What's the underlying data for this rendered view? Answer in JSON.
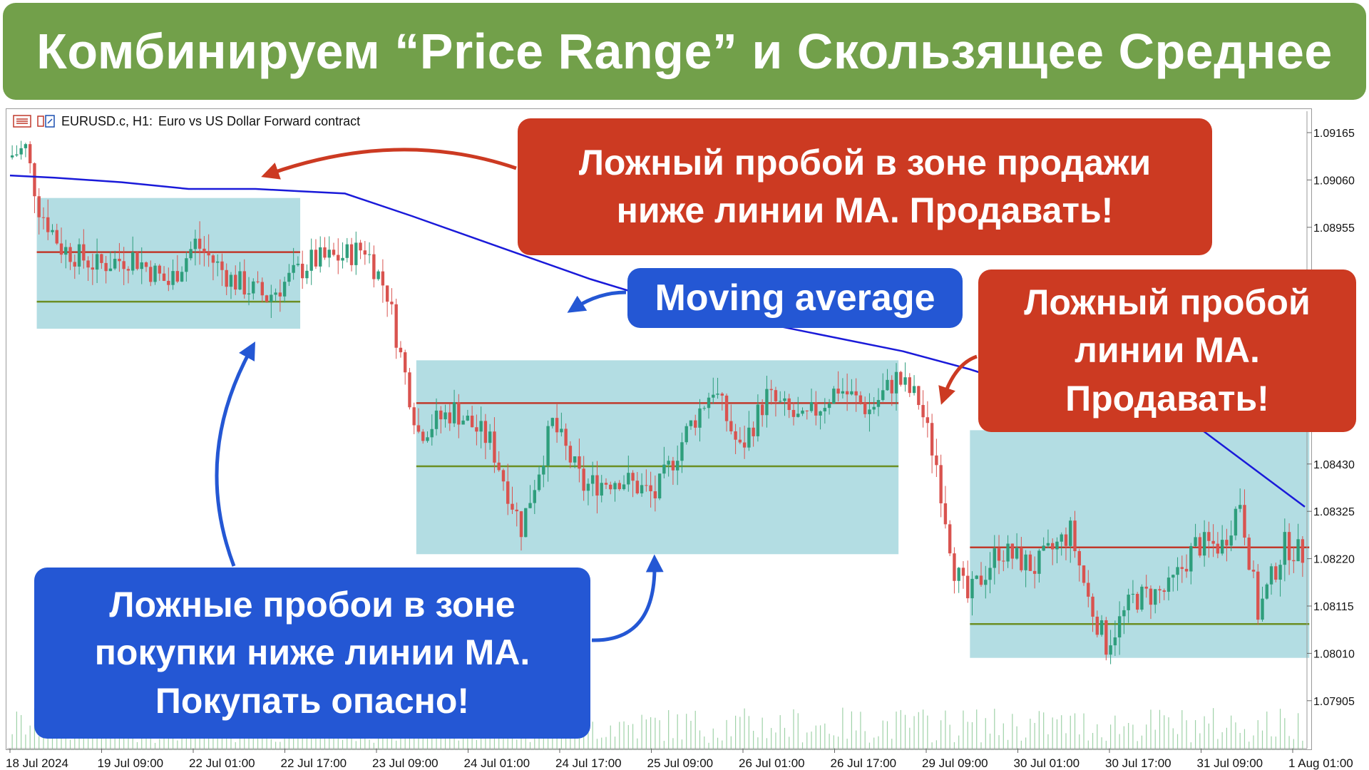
{
  "banner": {
    "title": "Комбинируем “Price Range” и Скользящее Среднее"
  },
  "header": {
    "symbol": "EURUSD.c, H1:",
    "description": "Euro vs US Dollar Forward contract"
  },
  "callouts": {
    "top_right": "Ложный пробой в зоне продажи\nниже линии MA. Продавать!",
    "moving_average": "Moving average",
    "right": "Ложный пробой\nлинии MA.\nПродавать!",
    "bottom_left": "Ложные пробои в зоне\nпокупки ниже линии MA.\nПокупать опасно!"
  },
  "colors": {
    "banner": "#72a04a",
    "bull": "#2e9e7c",
    "bear": "#d9534f",
    "ma": "#1a1ad9",
    "zone": "#b3dde3",
    "resistance": "#c0392b",
    "support": "#6b8e23",
    "callout_red": "#cc3a22",
    "callout_blue": "#2457d4"
  },
  "chart_data": {
    "type": "candlestick",
    "symbol": "EURUSD.c",
    "timeframe": "H1",
    "price_ticks": [
      1.09165,
      1.0906,
      1.08955,
      1.0843,
      1.08325,
      1.0822,
      1.08115,
      1.0801,
      1.07905
    ],
    "time_labels": [
      "18 Jul 2024",
      "19 Jul 09:00",
      "22 Jul 01:00",
      "22 Jul 17:00",
      "23 Jul 09:00",
      "24 Jul 01:00",
      "24 Jul 17:00",
      "25 Jul 09:00",
      "26 Jul 01:00",
      "26 Jul 17:00",
      "29 Jul 09:00",
      "30 Jul 01:00",
      "30 Jul 17:00",
      "31 Jul 09:00",
      "1 Aug 01:00"
    ],
    "ylim": [
      1.0785,
      1.0922
    ],
    "bars": 290,
    "moving_average": [
      {
        "bar": 0,
        "value": 1.0907
      },
      {
        "bar": 10,
        "value": 1.09065
      },
      {
        "bar": 25,
        "value": 1.09055
      },
      {
        "bar": 40,
        "value": 1.0904
      },
      {
        "bar": 55,
        "value": 1.0904
      },
      {
        "bar": 65,
        "value": 1.09035
      },
      {
        "bar": 75,
        "value": 1.0903
      },
      {
        "bar": 90,
        "value": 1.0898
      },
      {
        "bar": 110,
        "value": 1.0891
      },
      {
        "bar": 130,
        "value": 1.0884
      },
      {
        "bar": 150,
        "value": 1.0878
      },
      {
        "bar": 170,
        "value": 1.0874
      },
      {
        "bar": 200,
        "value": 1.0868
      },
      {
        "bar": 215,
        "value": 1.0864
      },
      {
        "bar": 240,
        "value": 1.0856
      },
      {
        "bar": 265,
        "value": 1.0852
      },
      {
        "bar": 290,
        "value": 1.08335
      }
    ],
    "ranges": [
      {
        "name": "range-1",
        "start_bar": 6,
        "end_bar": 65,
        "top": 1.0902,
        "bottom": 1.0873,
        "resistance": 1.089,
        "support": 1.0879
      },
      {
        "name": "range-2",
        "start_bar": 91,
        "end_bar": 199,
        "top": 1.0866,
        "bottom": 1.0823,
        "resistance": 1.08565,
        "support": 1.08425
      },
      {
        "name": "range-3",
        "start_bar": 215,
        "end_bar": 291,
        "top": 1.08505,
        "bottom": 1.08,
        "resistance": 1.08245,
        "support": 1.08075
      }
    ],
    "candles_keypoints": [
      {
        "bar": 0,
        "close": 1.0911
      },
      {
        "bar": 4,
        "close": 1.0913
      },
      {
        "bar": 7,
        "close": 1.09
      },
      {
        "bar": 12,
        "close": 1.0891
      },
      {
        "bar": 20,
        "close": 1.0887
      },
      {
        "bar": 28,
        "close": 1.0889
      },
      {
        "bar": 36,
        "close": 1.0883
      },
      {
        "bar": 42,
        "close": 1.0892
      },
      {
        "bar": 50,
        "close": 1.0884
      },
      {
        "bar": 58,
        "close": 1.088
      },
      {
        "bar": 63,
        "close": 1.0884
      },
      {
        "bar": 68,
        "close": 1.0888
      },
      {
        "bar": 75,
        "close": 1.0889
      },
      {
        "bar": 80,
        "close": 1.0891
      },
      {
        "bar": 85,
        "close": 1.0881
      },
      {
        "bar": 88,
        "close": 1.0867
      },
      {
        "bar": 92,
        "close": 1.085
      },
      {
        "bar": 100,
        "close": 1.0855
      },
      {
        "bar": 108,
        "close": 1.0848
      },
      {
        "bar": 115,
        "close": 1.0829
      },
      {
        "bar": 122,
        "close": 1.0852
      },
      {
        "bar": 129,
        "close": 1.0838
      },
      {
        "bar": 137,
        "close": 1.084
      },
      {
        "bar": 145,
        "close": 1.0836
      },
      {
        "bar": 152,
        "close": 1.085
      },
      {
        "bar": 158,
        "close": 1.086
      },
      {
        "bar": 164,
        "close": 1.0846
      },
      {
        "bar": 170,
        "close": 1.0858
      },
      {
        "bar": 178,
        "close": 1.0852
      },
      {
        "bar": 186,
        "close": 1.086
      },
      {
        "bar": 193,
        "close": 1.0855
      },
      {
        "bar": 199,
        "close": 1.0862
      },
      {
        "bar": 204,
        "close": 1.0857
      },
      {
        "bar": 208,
        "close": 1.0843
      },
      {
        "bar": 212,
        "close": 1.082
      },
      {
        "bar": 215,
        "close": 1.0813
      },
      {
        "bar": 222,
        "close": 1.0824
      },
      {
        "bar": 230,
        "close": 1.082
      },
      {
        "bar": 238,
        "close": 1.0828
      },
      {
        "bar": 242,
        "close": 1.0813
      },
      {
        "bar": 246,
        "close": 1.0803
      },
      {
        "bar": 252,
        "close": 1.0813
      },
      {
        "bar": 260,
        "close": 1.0815
      },
      {
        "bar": 266,
        "close": 1.0825
      },
      {
        "bar": 272,
        "close": 1.0825
      },
      {
        "bar": 276,
        "close": 1.0835
      },
      {
        "bar": 280,
        "close": 1.081
      },
      {
        "bar": 286,
        "close": 1.0825
      },
      {
        "bar": 290,
        "close": 1.0823
      }
    ]
  }
}
